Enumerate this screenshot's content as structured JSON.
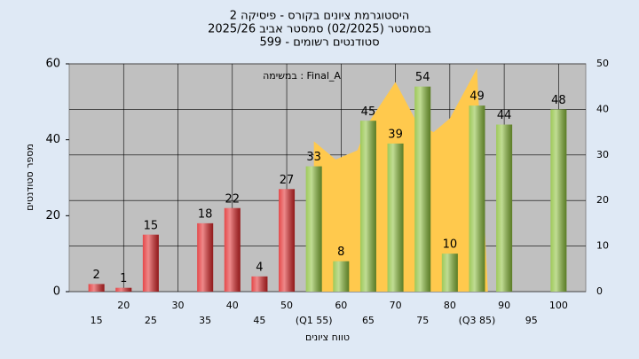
{
  "chart_data": {
    "type": "bar",
    "title": [
      "היסטוגרמת ציונים בקורס - פיסיקה 2",
      "בסמסטר  (02/2025)  סמסטר אביב  2025/26",
      "סטודנטים רשומים - 599"
    ],
    "annotation": "במשימה : Final_A",
    "xlabel": "טווח ציונים",
    "ylabel": "מספר סטודנטים",
    "x": [
      15,
      20,
      25,
      35,
      40,
      45,
      50,
      55,
      60,
      65,
      70,
      75,
      80,
      85,
      90,
      100
    ],
    "values": [
      2,
      1,
      15,
      18,
      22,
      4,
      27,
      33,
      8,
      45,
      39,
      54,
      10,
      49,
      44,
      48
    ],
    "bar_colors": [
      "#e0282a",
      "#e0282a",
      "#e0282a",
      "#e0282a",
      "#e0282a",
      "#e0282a",
      "#e0282a",
      "#8dc03c",
      "#8dc03c",
      "#8dc03c",
      "#8dc03c",
      "#8dc03c",
      "#8dc03c",
      "#8dc03c",
      "#8dc03c",
      "#8dc03c"
    ],
    "area": {
      "x": [
        55,
        59,
        63,
        65,
        70,
        74,
        77,
        80,
        85,
        87
      ],
      "values": [
        33,
        29,
        31,
        37,
        46,
        37,
        35,
        38,
        49,
        0
      ],
      "color": "#ffc94d",
      "axis": "y2"
    },
    "xlim": [
      10,
      105
    ],
    "xticks": [
      15,
      20,
      25,
      30,
      35,
      40,
      45,
      50,
      {
        "value": 55,
        "label": "(Q1 55)"
      },
      60,
      65,
      70,
      75,
      80,
      {
        "value": 85,
        "label": "(Q3 85)"
      },
      90,
      95,
      100
    ],
    "ylim": [
      0,
      60
    ],
    "yticks": [
      0,
      20,
      40,
      60
    ],
    "y2lim": [
      0,
      50
    ],
    "y2ticks": [
      0,
      10,
      20,
      30,
      40,
      50
    ],
    "grid": true
  }
}
